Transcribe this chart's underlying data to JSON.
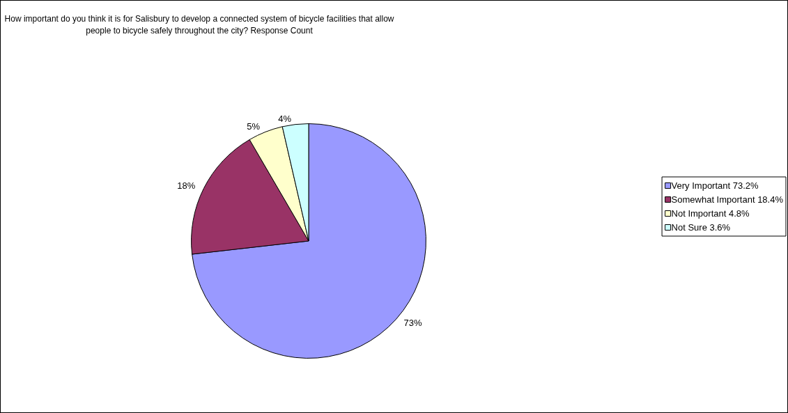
{
  "chart_data": {
    "type": "pie",
    "title": "How important do you think it is for Salisbury to develop a connected system of bicycle facilities that allow\npeople to bicycle safely throughout the city? Response Count",
    "categories": [
      "Very Important 73.2%",
      "Somewhat Important 18.4%",
      "Not Important 4.8%",
      "Not Sure 3.6%"
    ],
    "values": [
      73.2,
      18.4,
      4.8,
      3.6
    ],
    "colors": [
      "#9999ff",
      "#993366",
      "#ffffcc",
      "#ccffff"
    ],
    "value_labels": [
      "73%",
      "18%",
      "5%",
      "4%"
    ],
    "legend": "right"
  }
}
